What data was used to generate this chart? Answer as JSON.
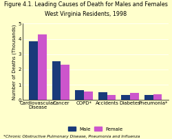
{
  "title_line1": "Figure 4.1. Leading Causes of Death for Males and Females",
  "title_line2": "West Virginia Residents, 1998",
  "categories": [
    "Cardiovascular\nDisease",
    "Cancer",
    "COPD*",
    "Accidents",
    "Diabetes",
    "Pneumonia*"
  ],
  "male_values": [
    3.85,
    2.55,
    0.63,
    0.5,
    0.32,
    0.33
  ],
  "female_values": [
    4.28,
    2.33,
    0.58,
    0.33,
    0.48,
    0.38
  ],
  "male_color": "#1a3a7a",
  "female_color": "#cc55cc",
  "background_color": "#ffffcc",
  "ylabel": "Number of Deaths (Thousands)",
  "ylim": [
    0,
    5
  ],
  "yticks": [
    0,
    1,
    2,
    3,
    4,
    5
  ],
  "footnote": "*Chronic Obstructive Pulmonary Disease, Pneumonia and Influenza",
  "legend_male": "Male",
  "legend_female": "Female",
  "title_fontsize": 5.8,
  "axis_fontsize": 5.0,
  "tick_fontsize": 5.0,
  "footnote_fontsize": 4.2,
  "bar_width": 0.38
}
